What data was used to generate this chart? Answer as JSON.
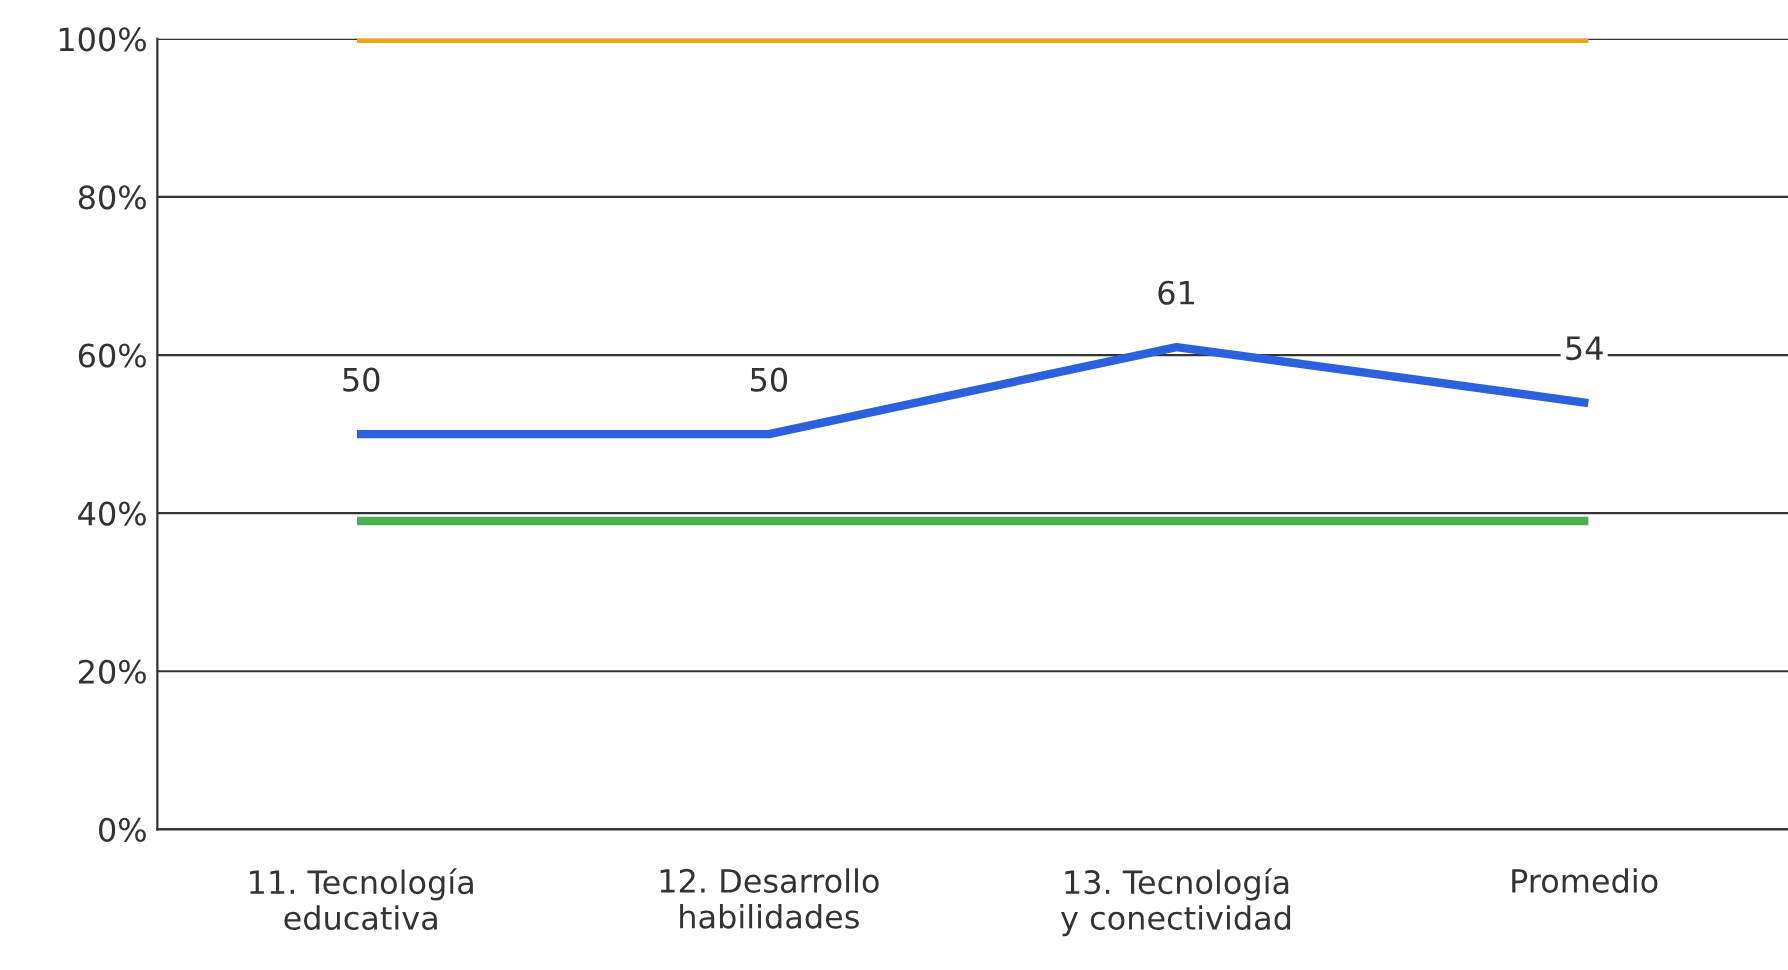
{
  "chart_data": {
    "type": "line",
    "categories": [
      "11. Tecnología\neducativa",
      "12. Desarrollo\nhabilidades",
      "13. Tecnología\ny conectividad",
      "Promedio"
    ],
    "series": [
      {
        "color": "#f5a40c",
        "values": [
          100,
          100,
          100,
          100
        ]
      },
      {
        "color": "#4caf50",
        "values": [
          39,
          39,
          39,
          39
        ]
      },
      {
        "color": "#2b60de",
        "values": [
          50,
          50,
          61,
          54
        ],
        "value_labels": [
          "50",
          "50",
          "61",
          "54"
        ]
      }
    ],
    "ylim": [
      0,
      100
    ],
    "yticks": [
      {
        "value": 0,
        "label": "0%"
      },
      {
        "value": 20,
        "label": "20%"
      },
      {
        "value": 40,
        "label": "40%"
      },
      {
        "value": 60,
        "label": "60%"
      },
      {
        "value": 80,
        "label": "80%"
      },
      {
        "value": 100,
        "label": "100%"
      }
    ],
    "grid": "y",
    "legend": false,
    "marker": "none",
    "line_style": "solid"
  }
}
